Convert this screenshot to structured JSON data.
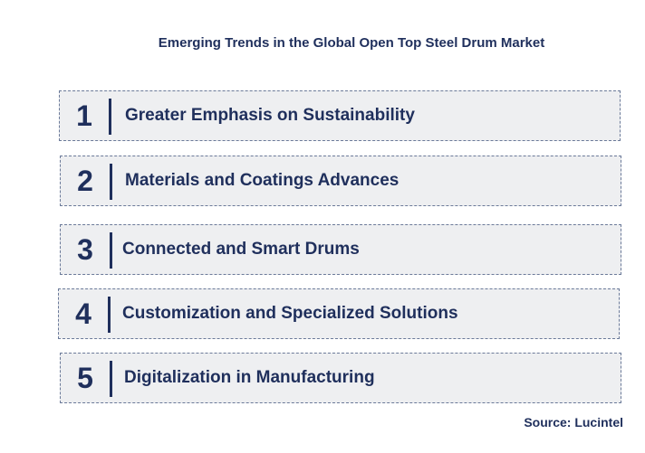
{
  "title": "Emerging Trends in the Global Open Top Steel Drum Market",
  "items": [
    {
      "number": "1",
      "label": "Greater Emphasis on Sustainability"
    },
    {
      "number": "2",
      "label": "Materials and Coatings Advances"
    },
    {
      "number": "3",
      "label": "Connected and Smart Drums"
    },
    {
      "number": "4",
      "label": "Customization and Specialized Solutions"
    },
    {
      "number": "5",
      "label": "Digitalization in Manufacturing"
    }
  ],
  "source": "Source: Lucintel",
  "colors": {
    "text": "#1f2f5c",
    "box_fill": "#eeeff1",
    "box_border": "#6b7a99"
  }
}
